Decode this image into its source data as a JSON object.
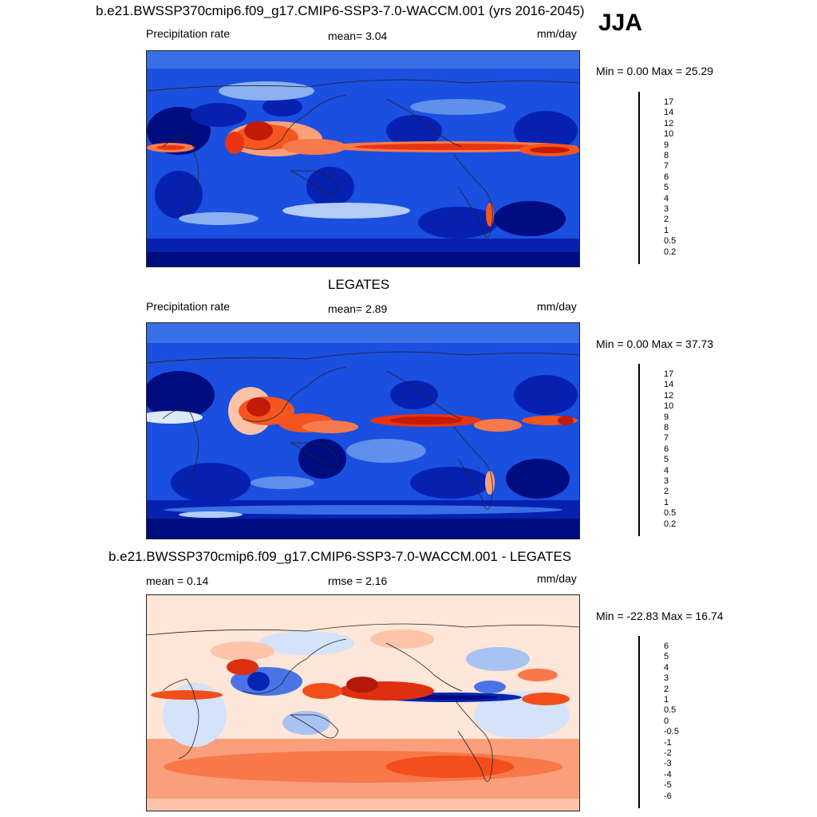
{
  "season": "JJA",
  "panels": [
    {
      "title": "b.e21.BWSSP370cmip6.f09_g17.CMIP6-SSP3-7.0-WACCM.001 (yrs 2016-2045)",
      "left_label": "Precipitation rate",
      "center_label": "mean=   3.04",
      "units": "mm/day",
      "minmax": "Min =   0.00 Max =  25.29",
      "colorbar_levels": [
        "17",
        "14",
        "12",
        "10",
        "9",
        "8",
        "7",
        "6",
        "5",
        "4",
        "3",
        "2",
        "1",
        "0.5",
        "0.2"
      ],
      "colorbar_colors": [
        "#8b0000",
        "#c41a08",
        "#e83412",
        "#f5551f",
        "#f87a4c",
        "#fba07c",
        "#fcc3a6",
        "#fde9d8",
        "#dce9fb",
        "#b4cdf7",
        "#8cb1f0",
        "#6090ec",
        "#3a6ee6",
        "#1740d8",
        "#0621b0",
        "#000d80"
      ]
    },
    {
      "title": "LEGATES",
      "left_label": "Precipitation rate",
      "center_label": "mean=   2.89",
      "units": "mm/day",
      "minmax": "Min =   0.00 Max =  37.73",
      "colorbar_levels": [
        "17",
        "14",
        "12",
        "10",
        "9",
        "8",
        "7",
        "6",
        "5",
        "4",
        "3",
        "2",
        "1",
        "0.5",
        "0.2"
      ],
      "colorbar_colors": [
        "#8b0000",
        "#c41a08",
        "#e83412",
        "#f5551f",
        "#f87a4c",
        "#fba07c",
        "#fcc3a6",
        "#fde9d8",
        "#dce9fb",
        "#b4cdf7",
        "#8cb1f0",
        "#6090ec",
        "#3a6ee6",
        "#1740d8",
        "#0621b0",
        "#000d80"
      ]
    },
    {
      "title": "b.e21.BWSSP370cmip6.f09_g17.CMIP6-SSP3-7.0-WACCM.001 - LEGATES",
      "left_label": "mean =   0.14",
      "center_label": "rmse =   2.16",
      "units": "mm/day",
      "minmax": "Min = -22.83 Max =  16.74",
      "colorbar_levels": [
        "6",
        "5",
        "4",
        "3",
        "2",
        "1",
        "0.5",
        "0",
        "-0.5",
        "-1",
        "-2",
        "-3",
        "-4",
        "-5",
        "-6"
      ],
      "colorbar_colors": [
        "#7a0000",
        "#b41808",
        "#dd3010",
        "#f24e1c",
        "#f8784a",
        "#fb9e7c",
        "#fdc4aa",
        "#fee6d8",
        "#f4f6fd",
        "#d4e2fa",
        "#a8c2f2",
        "#7a9ced",
        "#4a74e6",
        "#1c46d8",
        "#0524b2",
        "#000c80"
      ]
    }
  ]
}
